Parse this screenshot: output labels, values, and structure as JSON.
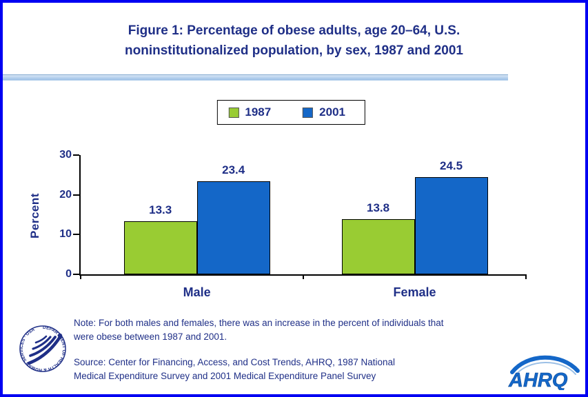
{
  "title": {
    "line1": "Figure 1: Percentage of obese adults, age 20–64, U.S.",
    "line2": "noninstitutionalized population, by sex, 1987 and 2001"
  },
  "chart_data": {
    "type": "bar",
    "title": "Figure 1: Percentage of obese adults, age 20–64, U.S. noninstitutionalized population, by sex, 1987 and 2001",
    "categories": [
      "Male",
      "Female"
    ],
    "series": [
      {
        "name": "1987",
        "color": "#99cc33",
        "values": [
          13.3,
          13.8
        ]
      },
      {
        "name": "2001",
        "color": "#1467c8",
        "values": [
          23.4,
          24.5
        ]
      }
    ],
    "xlabel": "",
    "ylabel": "Percent",
    "yticks": [
      0,
      10,
      20,
      30
    ],
    "ylim": [
      0,
      30
    ],
    "grid": false,
    "legend_position": "top-center"
  },
  "notes": {
    "note_lines": [
      "Note: For both males and females, there was an increase in the percent of individuals that",
      "were obese between 1987 and 2001."
    ],
    "source_lines": [
      "Source: Center for Financing, Access, and Cost Trends, AHRQ, 1987 National",
      "Medical Expenditure Survey and 2001 Medical Expenditure Panel Survey"
    ]
  },
  "logos": {
    "ahrq_text": "AHRQ",
    "hhs_circle_text": "DEPARTMENT OF HEALTH & HUMAN SERVICES · USA"
  },
  "colors": {
    "frame": "#0000f2",
    "text_navy": "#1f2f87",
    "bar_1987": "#99cc33",
    "bar_2001": "#1467c8"
  }
}
